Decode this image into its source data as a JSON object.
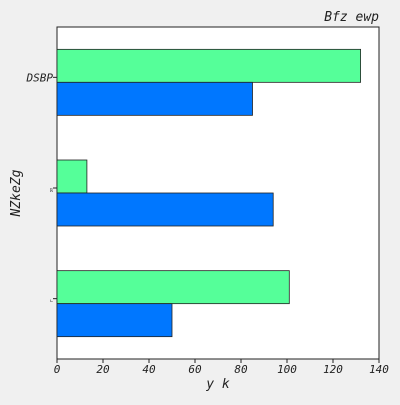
{
  "chart_data": {
    "type": "bar",
    "orientation": "horizontal",
    "title": "Bfz ewp",
    "xlabel": "y k",
    "ylabel": "NZkeZg",
    "categories": [
      "DSBP",
      "ℝ",
      "∟"
    ],
    "series": [
      {
        "values": [
          132,
          13,
          101
        ],
        "color": "#55ff99"
      },
      {
        "values": [
          85,
          94,
          50
        ],
        "color": "#0077ff"
      }
    ],
    "xlim": [
      0,
      140
    ],
    "xticks": [
      0,
      20,
      40,
      60,
      80,
      100,
      120,
      140
    ],
    "grid": false,
    "legend": "none"
  }
}
